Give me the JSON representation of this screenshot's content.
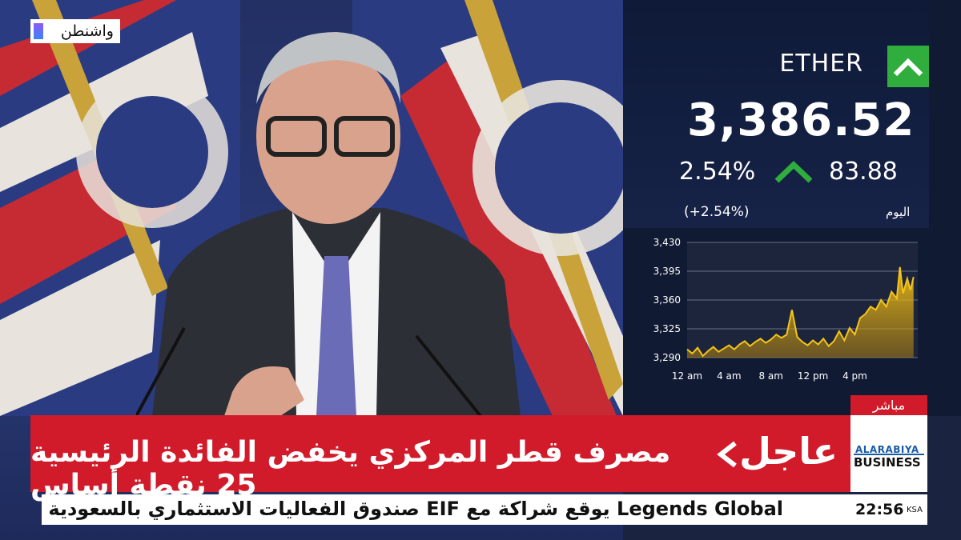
{
  "location_tag": "واشنطن",
  "ticker": {
    "name": "ETHER",
    "price": "3,386.52",
    "change_percent": "2.54%",
    "change_abs": "83.88",
    "change_percent_paren": "(+2.54%)",
    "period_label": "اليوم",
    "direction": "up",
    "colors": {
      "up": "#2fae3e",
      "line": "#f5c518",
      "bg": "#111a33"
    }
  },
  "chart_data": {
    "type": "area",
    "x_ticks": [
      "12 am",
      "4 am",
      "8 am",
      "12 pm",
      "4 pm"
    ],
    "y_ticks": [
      "3,430",
      "3,395",
      "3,360",
      "3,325",
      "3,290"
    ],
    "ylim": [
      3290,
      3430
    ],
    "xlim": [
      0,
      22
    ],
    "grid": true,
    "x": [
      0,
      0.5,
      1,
      1.5,
      2,
      2.5,
      3,
      3.5,
      4,
      4.5,
      5,
      5.5,
      6,
      6.5,
      7,
      7.5,
      8,
      8.5,
      9,
      9.5,
      10,
      10.5,
      11,
      11.5,
      12,
      12.5,
      13,
      13.5,
      14,
      14.5,
      15,
      15.5,
      16,
      16.5,
      17,
      17.5,
      18,
      18.5,
      19,
      19.5,
      20,
      20.3,
      20.6,
      21,
      21.3,
      21.6
    ],
    "y": [
      3300,
      3295,
      3302,
      3292,
      3298,
      3303,
      3297,
      3301,
      3305,
      3300,
      3306,
      3310,
      3304,
      3309,
      3313,
      3308,
      3312,
      3318,
      3314,
      3318,
      3348,
      3315,
      3309,
      3305,
      3311,
      3306,
      3313,
      3304,
      3310,
      3322,
      3311,
      3326,
      3318,
      3338,
      3343,
      3352,
      3348,
      3360,
      3352,
      3370,
      3362,
      3400,
      3368,
      3386,
      3372,
      3388
    ]
  },
  "live_tag": "مباشر",
  "urgent": {
    "word": "عاجل",
    "headline": "مصرف قطر المركزي يخفض الفائدة الرئيسية 25 نقطة أساس"
  },
  "brand": {
    "line1": "ALARABIYA",
    "line2": "BUSINESS"
  },
  "crawl": {
    "text": "صندوق الفعاليات الاستثماري بالسعودية EIF يوقع شراكة مع Legends Global"
  },
  "clock": {
    "time": "22:56",
    "tz": "KSA"
  }
}
